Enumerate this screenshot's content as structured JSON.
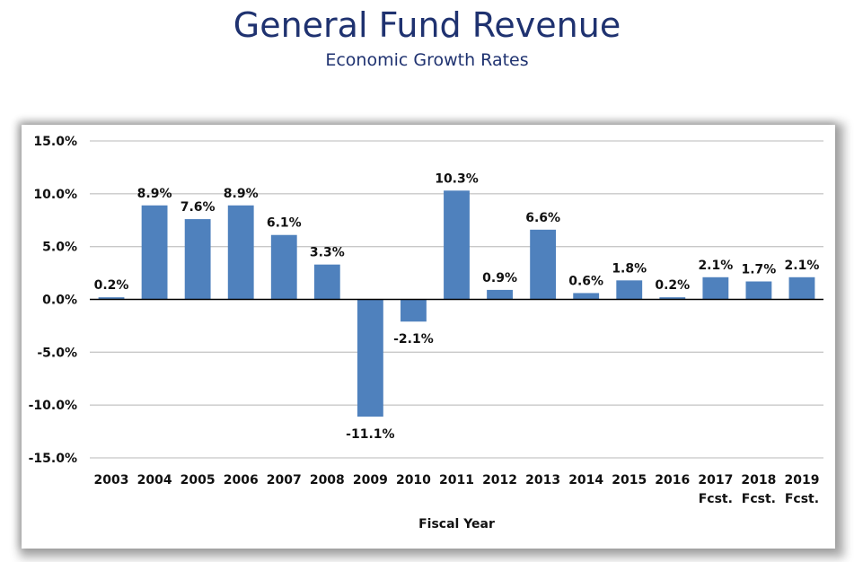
{
  "header": {
    "title": "General Fund Revenue",
    "subtitle": "Economic Growth Rates"
  },
  "chart_data": {
    "type": "bar",
    "title": "General Fund Revenue",
    "subtitle": "Economic Growth Rates",
    "xlabel": "Fiscal Year",
    "ylabel": "",
    "ylim": [
      -15,
      15
    ],
    "yticks": [
      15,
      10,
      5,
      0,
      -5,
      -10,
      -15
    ],
    "ytick_labels": [
      "15.0%",
      "10.0%",
      "5.0%",
      "0.0%",
      "-5.0%",
      "-10.0%",
      "-15.0%"
    ],
    "grid": true,
    "legend": "none",
    "categories": [
      [
        "2003"
      ],
      [
        "2004"
      ],
      [
        "2005"
      ],
      [
        "2006"
      ],
      [
        "2007"
      ],
      [
        "2008"
      ],
      [
        "2009"
      ],
      [
        "2010"
      ],
      [
        "2011"
      ],
      [
        "2012"
      ],
      [
        "2013"
      ],
      [
        "2014"
      ],
      [
        "2015"
      ],
      [
        "2016"
      ],
      [
        "2017",
        "Fcst."
      ],
      [
        "2018",
        "Fcst."
      ],
      [
        "2019",
        "Fcst."
      ]
    ],
    "values": [
      0.2,
      8.9,
      7.6,
      8.9,
      6.1,
      3.3,
      -11.1,
      -2.1,
      10.3,
      0.9,
      6.6,
      0.6,
      1.8,
      0.2,
      2.1,
      1.7,
      2.1
    ],
    "data_labels": [
      "0.2%",
      "8.9%",
      "7.6%",
      "8.9%",
      "6.1%",
      "3.3%",
      "-11.1%",
      "-2.1%",
      "10.3%",
      "0.9%",
      "6.6%",
      "0.6%",
      "1.8%",
      "0.2%",
      "2.1%",
      "1.7%",
      "2.1%"
    ],
    "colors": {
      "bar": "#4f81bd",
      "grid": "#c8c8c8",
      "zero_line": "#000000",
      "title": "#1f3270"
    }
  }
}
